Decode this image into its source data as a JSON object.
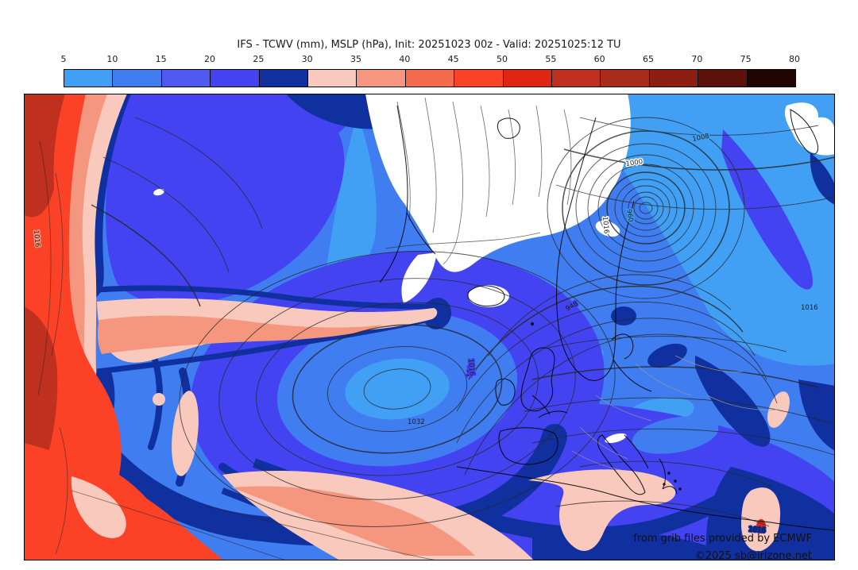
{
  "title": "IFS - TCWV (mm), MSLP (hPa), Init: 20251023 00z - Valid: 20251025:12 TU",
  "colorbar": {
    "unit_ticks": [
      "5",
      "10",
      "15",
      "20",
      "25",
      "30",
      "35",
      "40",
      "45",
      "50",
      "55",
      "60",
      "65",
      "70",
      "75",
      "80"
    ],
    "segments": [
      {
        "range": "5-10",
        "color": "#41a0f3"
      },
      {
        "range": "10-15",
        "color": "#3f7df1"
      },
      {
        "range": "15-20",
        "color": "#4f5bf0"
      },
      {
        "range": "20-25",
        "color": "#4343f1"
      },
      {
        "range": "25-30",
        "color": "#10309f"
      },
      {
        "range": "30-35",
        "color": "#f9c9bd"
      },
      {
        "range": "35-40",
        "color": "#f5967e"
      },
      {
        "range": "40-45",
        "color": "#f66a4e"
      },
      {
        "range": "45-50",
        "color": "#fb4227"
      },
      {
        "range": "50-55",
        "color": "#e02512"
      },
      {
        "range": "55-60",
        "color": "#c0301e"
      },
      {
        "range": "60-65",
        "color": "#a92b1b"
      },
      {
        "range": "65-70",
        "color": "#8d1f12"
      },
      {
        "range": "70-75",
        "color": "#5e100a"
      },
      {
        "range": "75-80",
        "color": "#210503"
      }
    ]
  },
  "map": {
    "isobar_labels": [
      "1032",
      "1024",
      "1016",
      "1000",
      "960",
      "1016",
      "1016",
      "1016",
      "1008",
      "1016",
      "948"
    ],
    "attribution": {
      "line1": "from grib files provided by ECMWF",
      "line2": "©2025 sb@irizone.net"
    },
    "field_colors": {
      "dry_white": "#ffffff",
      "blue_5_10": "#41a0f3",
      "blue_10_15": "#3f7df1",
      "violet_20_25": "#4343f1",
      "navy_25_30": "#10309f",
      "pink_30_35": "#f9c9bd",
      "salmon_35_40": "#f5967e",
      "red_45_50": "#fb4227",
      "darkred_55_60": "#c0301e"
    }
  }
}
